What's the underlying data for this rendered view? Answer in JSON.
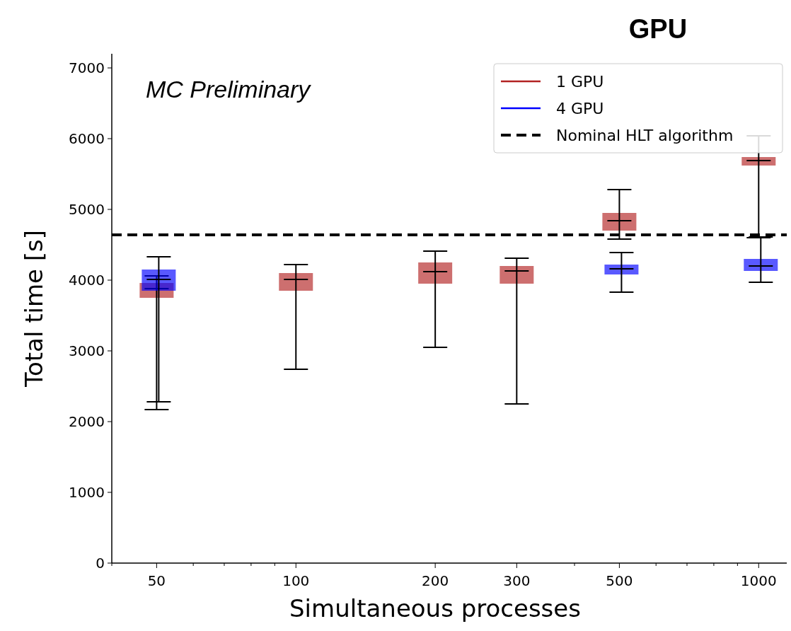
{
  "chart_data": {
    "type": "box",
    "title": "GPU",
    "xlabel": "Simultaneous processes",
    "ylabel": "Total time [s]",
    "annotations": [
      "MC Preliminary"
    ],
    "log": "x",
    "xlim": [
      40,
      1150
    ],
    "xticks": [
      {
        "value": 40,
        "label": null
      },
      50,
      {
        "value": 60,
        "label": null
      },
      {
        "value": 70,
        "label": null
      },
      {
        "value": 80,
        "label": null
      },
      {
        "value": 90,
        "label": null
      },
      100,
      200,
      300,
      {
        "value": 400,
        "label": null
      },
      500,
      {
        "value": 600,
        "label": null
      },
      {
        "value": 700,
        "label": null
      },
      {
        "value": 800,
        "label": null
      },
      {
        "value": 900,
        "label": null
      },
      1000
    ],
    "ylim": [
      0,
      7200
    ],
    "yticks": [
      0,
      1000,
      2000,
      3000,
      4000,
      5000,
      6000,
      7000
    ],
    "grid": false,
    "legend": "top right",
    "ref_lines": [
      {
        "axis": "y",
        "value": 4640,
        "label": "Nominal HLT algorithm",
        "color": "#000000",
        "line_style": "dashed"
      }
    ],
    "series": [
      {
        "name": "1 GPU",
        "color": "#b22222",
        "x": [
          50,
          100,
          200,
          300,
          500,
          1000
        ],
        "boxes": [
          {
            "low": 2170,
            "q1": 3750,
            "median": 3880,
            "q3": 3960,
            "high": 4060
          },
          {
            "low": 2740,
            "q1": 3850,
            "median": 4010,
            "q3": 4100,
            "high": 4220
          },
          {
            "low": 3050,
            "q1": 3950,
            "median": 4120,
            "q3": 4250,
            "high": 4410
          },
          {
            "low": 2250,
            "q1": 3950,
            "median": 4130,
            "q3": 4200,
            "high": 4310
          },
          {
            "low": 4580,
            "q1": 4700,
            "median": 4840,
            "q3": 4950,
            "high": 5280
          },
          {
            "low": 4600,
            "q1": 5620,
            "median": 5690,
            "q3": 5740,
            "high": 6040
          }
        ]
      },
      {
        "name": "4 GPU",
        "color": "#0000ff",
        "x": [
          50,
          500,
          1000
        ],
        "boxes": [
          {
            "low": 2280,
            "q1": 3850,
            "median": 4010,
            "q3": 4150,
            "high": 4330
          },
          {
            "low": 3830,
            "q1": 4080,
            "median": 4160,
            "q3": 4220,
            "high": 4390
          },
          {
            "low": 3970,
            "q1": 4130,
            "median": 4200,
            "q3": 4300,
            "high": 4610
          }
        ]
      }
    ]
  }
}
